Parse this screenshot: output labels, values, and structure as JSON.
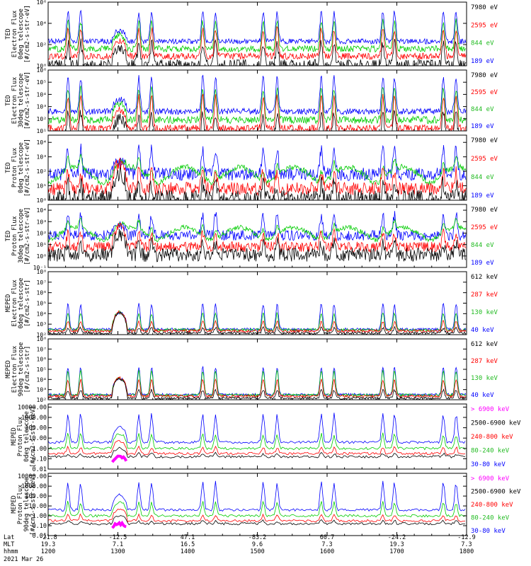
{
  "chart_data": {
    "type": "line",
    "x_axis": {
      "rows": [
        {
          "label": "Lat",
          "values": [
            "-21.8",
            "-12.5",
            "47.1",
            "-83.2",
            "60.7",
            "-24.2",
            "-12.9"
          ]
        },
        {
          "label": "MLT",
          "values": [
            "19.3",
            "7.1",
            "16.5",
            "9.6",
            "7.3",
            "19.3",
            "7.3"
          ]
        },
        {
          "label": "hhmm",
          "values": [
            "1200",
            "1300",
            "1400",
            "1500",
            "1600",
            "1700",
            "1800"
          ]
        }
      ],
      "date": "2021 Mar 26",
      "time_range": [
        "1200",
        "1800"
      ]
    },
    "panels": [
      {
        "ylabel": [
          "TED",
          "Electron Flux",
          "0deg telescope",
          "[#/cm2-s-str-eV]"
        ],
        "ytick_labels": [
          "10⁰",
          "10²",
          "10⁴",
          "10⁶"
        ],
        "ytick_exponents": [
          0,
          2,
          4,
          6
        ],
        "ylim": [
          0,
          6
        ],
        "scale": "log",
        "series": [
          {
            "name": "7980 eV",
            "color": "#000000"
          },
          {
            "name": "2595 eV",
            "color": "#ff0000"
          },
          {
            "name": "844 eV",
            "color": "#00cc00"
          },
          {
            "name": "189 eV",
            "color": "#0000ff"
          }
        ]
      },
      {
        "ylabel": [
          "TED",
          "Electron Flux",
          "30deg telescope",
          "[#/cm2-s-str-eV]"
        ],
        "ytick_labels": [
          "10¹",
          "10²",
          "10³",
          "10⁴",
          "10⁵",
          "10⁶"
        ],
        "ytick_exponents": [
          1,
          2,
          3,
          4,
          5,
          6
        ],
        "ylim": [
          1,
          6
        ],
        "scale": "log",
        "series": [
          {
            "name": "7980 eV",
            "color": "#000000"
          },
          {
            "name": "2595 eV",
            "color": "#ff0000"
          },
          {
            "name": "844 eV",
            "color": "#00cc00"
          },
          {
            "name": "189 eV",
            "color": "#0000ff"
          }
        ]
      },
      {
        "ylabel": [
          "TED",
          "Proton Flux",
          "0deg telescope",
          "[#/cm2-s-str-eV]"
        ],
        "ytick_labels": [
          "10⁰",
          "10¹",
          "10²",
          "10³",
          "10⁴"
        ],
        "ytick_exponents": [
          0,
          1,
          2,
          3,
          4
        ],
        "ylim": [
          0,
          4.5
        ],
        "scale": "log",
        "series": [
          {
            "name": "7980 eV",
            "color": "#000000"
          },
          {
            "name": "2595 eV",
            "color": "#ff0000"
          },
          {
            "name": "844 eV",
            "color": "#00cc00"
          },
          {
            "name": "189 eV",
            "color": "#0000ff"
          }
        ]
      },
      {
        "ylabel": [
          "TED",
          "Proton Flux",
          "30deg telescope",
          "[#/cm2-s-str-eV]"
        ],
        "ytick_labels": [
          "10⁻¹",
          "10⁰",
          "10¹",
          "10²",
          "10³",
          "10⁴"
        ],
        "ytick_exponents": [
          -1,
          0,
          1,
          2,
          3,
          4
        ],
        "ylim": [
          -1,
          4.5
        ],
        "scale": "log",
        "series": [
          {
            "name": "7980 eV",
            "color": "#000000"
          },
          {
            "name": "2595 eV",
            "color": "#ff0000"
          },
          {
            "name": "844 eV",
            "color": "#00cc00"
          },
          {
            "name": "189 eV",
            "color": "#0000ff"
          }
        ]
      },
      {
        "ylabel": [
          "MEPED",
          "Electron Flux",
          "0deg telescope",
          "[#/cm2-s-str]"
        ],
        "ytick_labels": [
          "10²",
          "10³",
          "10⁴",
          "10⁵",
          "10⁶",
          "10⁷",
          "10⁸"
        ],
        "ytick_exponents": [
          2,
          3,
          4,
          5,
          6,
          7,
          8
        ],
        "ylim": [
          2,
          8
        ],
        "scale": "log",
        "series": [
          {
            "name": "612 keV",
            "color": "#000000"
          },
          {
            "name": "287 keV",
            "color": "#ff0000"
          },
          {
            "name": "130 keV",
            "color": "#00cc00"
          },
          {
            "name": "40 keV",
            "color": "#0000ff"
          }
        ]
      },
      {
        "ylabel": [
          "MEPED",
          "Electron Flux",
          "90deg telescope",
          "[#/cm2-s-str]"
        ],
        "ytick_labels": [
          "10²",
          "10³",
          "10⁴",
          "10⁵",
          "10⁶",
          "10⁷",
          "10⁸"
        ],
        "ytick_exponents": [
          2,
          3,
          4,
          5,
          6,
          7,
          8
        ],
        "ylim": [
          2,
          8
        ],
        "scale": "log",
        "series": [
          {
            "name": "612 keV",
            "color": "#000000"
          },
          {
            "name": "287 keV",
            "color": "#ff0000"
          },
          {
            "name": "130 keV",
            "color": "#00cc00"
          },
          {
            "name": "40 keV",
            "color": "#0000ff"
          }
        ]
      },
      {
        "ylabel": [
          "MEPED",
          "Proton Flux",
          "0deg telescope",
          "[#/cm2-s-str-keV]"
        ],
        "ytick_labels": [
          "0.01",
          "0.10",
          "1.00",
          "10.00",
          "100.00",
          "1000.00",
          "10000.00"
        ],
        "ytick_exponents": [
          -2,
          -1,
          0,
          1,
          2,
          3,
          4
        ],
        "ylim": [
          -2,
          4.3
        ],
        "scale": "log",
        "series": [
          {
            "name": "> 6900 keV",
            "color": "#ff00ff"
          },
          {
            "name": "2500-6900 keV",
            "color": "#000000"
          },
          {
            "name": "240-800 keV",
            "color": "#ff0000"
          },
          {
            "name": "80-240 keV",
            "color": "#00cc00"
          },
          {
            "name": "30-80 keV",
            "color": "#0000ff"
          }
        ]
      },
      {
        "ylabel": [
          "MEPED",
          "Proton Flux",
          "90deg telescope",
          "[#/cm2-s-str-keV]"
        ],
        "ytick_labels": [
          "0.01",
          "0.10",
          "1.00",
          "10.00",
          "100.00",
          "1000.00",
          "10000.00"
        ],
        "ytick_exponents": [
          -2,
          -1,
          0,
          1,
          2,
          3,
          4
        ],
        "ylim": [
          -2,
          4.3
        ],
        "scale": "log",
        "series": [
          {
            "name": "> 6900 keV",
            "color": "#ff00ff"
          },
          {
            "name": "2500-6900 keV",
            "color": "#000000"
          },
          {
            "name": "240-800 keV",
            "color": "#ff0000"
          },
          {
            "name": "80-240 keV",
            "color": "#00cc00"
          },
          {
            "name": "30-80 keV",
            "color": "#0000ff"
          }
        ]
      }
    ],
    "auroral_crossings_hhmm": [
      "1217",
      "1228",
      "1318",
      "1329",
      "1413",
      "1424",
      "1505",
      "1517",
      "1555",
      "1606",
      "1648",
      "1658",
      "1740",
      "1751"
    ],
    "radiation_belt_crossing_hhmm": [
      "1255",
      "1308"
    ]
  }
}
